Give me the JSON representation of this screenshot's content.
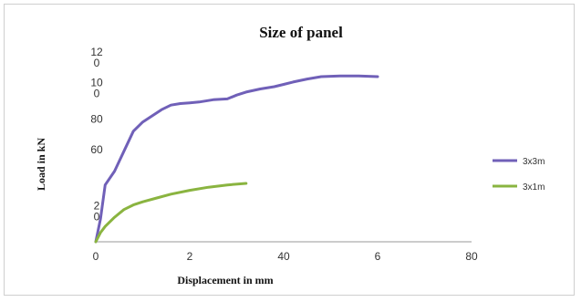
{
  "chart_data": {
    "type": "line",
    "title": "Size of panel",
    "xlabel": "Displacement in mm",
    "ylabel": "Load in kN",
    "xlim": [
      0,
      80
    ],
    "ylim": [
      0,
      120
    ],
    "x_tick_labels": [
      "0",
      "2",
      "40",
      "6",
      "80"
    ],
    "y_tick_labels": [
      {
        "value": 120,
        "lines": [
          "12",
          "0"
        ]
      },
      {
        "value": 100,
        "lines": [
          "10",
          "0"
        ]
      },
      {
        "value": 80,
        "lines": [
          "80"
        ]
      },
      {
        "value": 60,
        "lines": [
          "60"
        ]
      },
      {
        "value": 20,
        "lines": [
          "2",
          "0"
        ]
      }
    ],
    "grid": false,
    "legend_position": "right",
    "series": [
      {
        "name": "3x3m",
        "color": "#7060b8",
        "x": [
          0,
          1,
          2,
          4,
          6,
          8,
          10,
          12,
          14,
          16,
          18,
          20,
          22,
          25,
          28,
          30,
          32,
          35,
          38,
          40,
          42,
          45,
          48,
          52,
          56,
          60
        ],
        "y": [
          0,
          15,
          37,
          46,
          59,
          72,
          78,
          82,
          86,
          89,
          90,
          90.5,
          91,
          92.5,
          93,
          95.5,
          97.5,
          99.5,
          101,
          102.5,
          104,
          106,
          107.5,
          108,
          108,
          107.5
        ]
      },
      {
        "name": "3x1m",
        "color": "#8ab440",
        "x": [
          0,
          1,
          2,
          4,
          6,
          8,
          10,
          13,
          16,
          20,
          24,
          28,
          32
        ],
        "y": [
          0,
          6,
          10,
          16,
          21,
          24,
          26,
          28.5,
          31,
          33.5,
          35.5,
          37,
          38
        ]
      }
    ]
  }
}
